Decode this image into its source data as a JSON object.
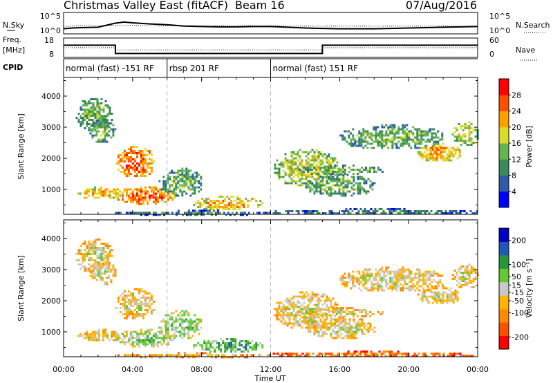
{
  "header": {
    "title": "Christmas Valley East (fitACF)",
    "beam": "Beam 16",
    "date": "07/Aug/2016"
  },
  "noise_panel": {
    "left_label": "N.Sky",
    "right_label": "N.Search",
    "left_ticks": [
      "10^5",
      "10^0"
    ],
    "right_ticks": [
      "10^5",
      "10^0"
    ]
  },
  "freq_panel": {
    "left_label_line1": "Freq.",
    "left_label_line2": "[MHz]",
    "right_label": "Nave",
    "left_ticks": [
      "18",
      "8"
    ],
    "right_ticks": [
      "60",
      "0"
    ]
  },
  "cpid": {
    "label": "CPID",
    "modes": [
      {
        "name": "normal (fast) -151 RF",
        "start_h": 0,
        "end_h": 6
      },
      {
        "name": "rbsp 201 RF",
        "start_h": 6,
        "end_h": 12
      },
      {
        "name": "normal (fast) 151 RF",
        "start_h": 12,
        "end_h": 24
      }
    ]
  },
  "colors": {
    "power": [
      "#0000ff",
      "#2e5aa8",
      "#3a8a5a",
      "#64b450",
      "#dcdc28",
      "#ffa000",
      "#ff5000",
      "#ff0000"
    ],
    "velocity": [
      "#ff0000",
      "#ff5000",
      "#ff8c00",
      "#ffb400",
      "#c8c8c8",
      "#64c832",
      "#28963c",
      "#1e5ab4",
      "#0000c8"
    ]
  },
  "chart_data": [
    {
      "type": "line",
      "title": "N.Sky / N.Search",
      "x_unit": "hours UT",
      "x": [
        0,
        0.5,
        1,
        2,
        3,
        3.5,
        4,
        5,
        6,
        7,
        8,
        9,
        10,
        11,
        12,
        13,
        14,
        15,
        16,
        17,
        18,
        19,
        20,
        21,
        22,
        23,
        24
      ],
      "series": [
        {
          "name": "N.Sky",
          "values": [
            1,
            1.2,
            1.3,
            1.4,
            2.5,
            2.8,
            2.6,
            2.3,
            2.1,
            1.7,
            1.6,
            1.5,
            1.5,
            1.6,
            1.6,
            1.4,
            1.2,
            1.1,
            1.0,
            1.0,
            1.0,
            1.1,
            1.2,
            1.3,
            1.4,
            1.5,
            1.6
          ]
        },
        {
          "name": "N.Search",
          "values": [
            1.5,
            1.7,
            1.8,
            1.8,
            1.9,
            1.9,
            1.9,
            1.8,
            1.8,
            1.8,
            1.8,
            1.8,
            1.8,
            1.8,
            1.8,
            1.7,
            1.7,
            1.7,
            1.7,
            1.7,
            1.7,
            1.7,
            1.7,
            1.7,
            1.7,
            1.7,
            1.7
          ]
        }
      ],
      "ylim": [
        0,
        5
      ]
    },
    {
      "type": "line",
      "title": "Freq. / Nave",
      "x_unit": "hours UT",
      "x": [
        0,
        3,
        3.0,
        15,
        15.0,
        24
      ],
      "series": [
        {
          "name": "Freq.",
          "values": [
            14.5,
            14.5,
            9.5,
            9.5,
            14.5,
            14.5
          ]
        },
        {
          "name": "Nave",
          "values": [
            30,
            30,
            22,
            22,
            30,
            30
          ]
        }
      ],
      "ylim_left": [
        8,
        18
      ],
      "ylim_right": [
        0,
        60
      ]
    },
    {
      "type": "heatmap",
      "title": "Power",
      "xlabel": "",
      "ylabel": "Slant Range [km]",
      "xlim_hours": [
        0,
        24
      ],
      "ylim": [
        200,
        4600
      ],
      "yticks": [
        1000,
        2000,
        3000,
        4000
      ],
      "xticks_hours": [
        0,
        4,
        8,
        12,
        16,
        20,
        24
      ],
      "xtick_labels": [
        "00:00",
        "04:00",
        "08:00",
        "12:00",
        "16:00",
        "20:00",
        "00:00"
      ],
      "colorbar": {
        "label": "Power [dB]",
        "range": [
          0,
          32
        ],
        "ticks": [
          4,
          8,
          12,
          16,
          20,
          24,
          28
        ]
      },
      "echo_regions": [
        {
          "t0": 0.7,
          "t1": 2.8,
          "r0": 2900,
          "r1": 4000,
          "level": 3
        },
        {
          "t0": 1.5,
          "t1": 3.0,
          "r0": 2500,
          "r1": 3300,
          "level": 3
        },
        {
          "t0": 0.8,
          "t1": 3.5,
          "r0": 700,
          "r1": 1100,
          "level": 5
        },
        {
          "t0": 3.0,
          "t1": 5.2,
          "r0": 1400,
          "r1": 2400,
          "level": 6
        },
        {
          "t0": 3.0,
          "t1": 6.5,
          "r0": 550,
          "r1": 1100,
          "level": 6
        },
        {
          "t0": 5.5,
          "t1": 8.0,
          "r0": 800,
          "r1": 1700,
          "level": 3
        },
        {
          "t0": 7.5,
          "t1": 11.5,
          "r0": 350,
          "r1": 800,
          "level": 5
        },
        {
          "t0": 3.0,
          "t1": 12.0,
          "r0": 200,
          "r1": 350,
          "level": 2
        },
        {
          "t0": 12.0,
          "t1": 24.0,
          "r0": 200,
          "r1": 400,
          "level": 2
        },
        {
          "t0": 12.2,
          "t1": 16.0,
          "r0": 1100,
          "r1": 2300,
          "level": 4
        },
        {
          "t0": 13.5,
          "t1": 18.5,
          "r0": 1500,
          "r1": 1800,
          "level": 3
        },
        {
          "t0": 14.0,
          "t1": 18.0,
          "r0": 800,
          "r1": 1500,
          "level": 3
        },
        {
          "t0": 16.0,
          "t1": 22.0,
          "r0": 2300,
          "r1": 3100,
          "level": 3
        },
        {
          "t0": 20.5,
          "t1": 23.0,
          "r0": 1900,
          "r1": 2500,
          "level": 5
        },
        {
          "t0": 22.5,
          "t1": 24.0,
          "r0": 2400,
          "r1": 3200,
          "level": 4
        }
      ]
    },
    {
      "type": "heatmap",
      "title": "Velocity",
      "xlabel": "Time UT",
      "ylabel": "Slant Range [km]",
      "xlim_hours": [
        0,
        24
      ],
      "ylim": [
        200,
        4600
      ],
      "yticks": [
        1000,
        2000,
        3000,
        4000
      ],
      "xticks_hours": [
        0,
        4,
        8,
        12,
        16,
        20,
        24
      ],
      "xtick_labels": [
        "00:00",
        "04:00",
        "08:00",
        "12:00",
        "16:00",
        "20:00",
        "00:00"
      ],
      "colorbar": {
        "label": "Velocity [m s⁻¹]",
        "range": [
          -250,
          250
        ],
        "ticks": [
          -200,
          -100,
          -50,
          -15,
          15,
          50,
          100,
          200
        ]
      },
      "echo_regions": [
        {
          "t0": 0.7,
          "t1": 2.8,
          "r0": 2900,
          "r1": 4000,
          "level": 4
        },
        {
          "t0": 1.5,
          "t1": 3.0,
          "r0": 2500,
          "r1": 3300,
          "level": 4
        },
        {
          "t0": 0.8,
          "t1": 3.5,
          "r0": 700,
          "r1": 1100,
          "level": 4
        },
        {
          "t0": 3.0,
          "t1": 5.2,
          "r0": 1400,
          "r1": 2400,
          "level": 4
        },
        {
          "t0": 3.0,
          "t1": 6.5,
          "r0": 550,
          "r1": 1100,
          "level": 5
        },
        {
          "t0": 5.5,
          "t1": 8.0,
          "r0": 800,
          "r1": 1700,
          "level": 5
        },
        {
          "t0": 7.5,
          "t1": 11.5,
          "r0": 350,
          "r1": 800,
          "level": 6
        },
        {
          "t0": 3.0,
          "t1": 12.0,
          "r0": 200,
          "r1": 350,
          "level": 3
        },
        {
          "t0": 12.0,
          "t1": 24.0,
          "r0": 200,
          "r1": 400,
          "level": 2
        },
        {
          "t0": 12.2,
          "t1": 16.0,
          "r0": 1100,
          "r1": 2300,
          "level": 4
        },
        {
          "t0": 13.5,
          "t1": 18.5,
          "r0": 1500,
          "r1": 1800,
          "level": 4
        },
        {
          "t0": 14.0,
          "t1": 18.0,
          "r0": 800,
          "r1": 1500,
          "level": 4
        },
        {
          "t0": 16.0,
          "t1": 22.0,
          "r0": 2300,
          "r1": 3100,
          "level": 4
        },
        {
          "t0": 20.5,
          "t1": 23.0,
          "r0": 1900,
          "r1": 2500,
          "level": 4
        },
        {
          "t0": 22.5,
          "t1": 24.0,
          "r0": 2400,
          "r1": 3200,
          "level": 4
        }
      ]
    }
  ]
}
